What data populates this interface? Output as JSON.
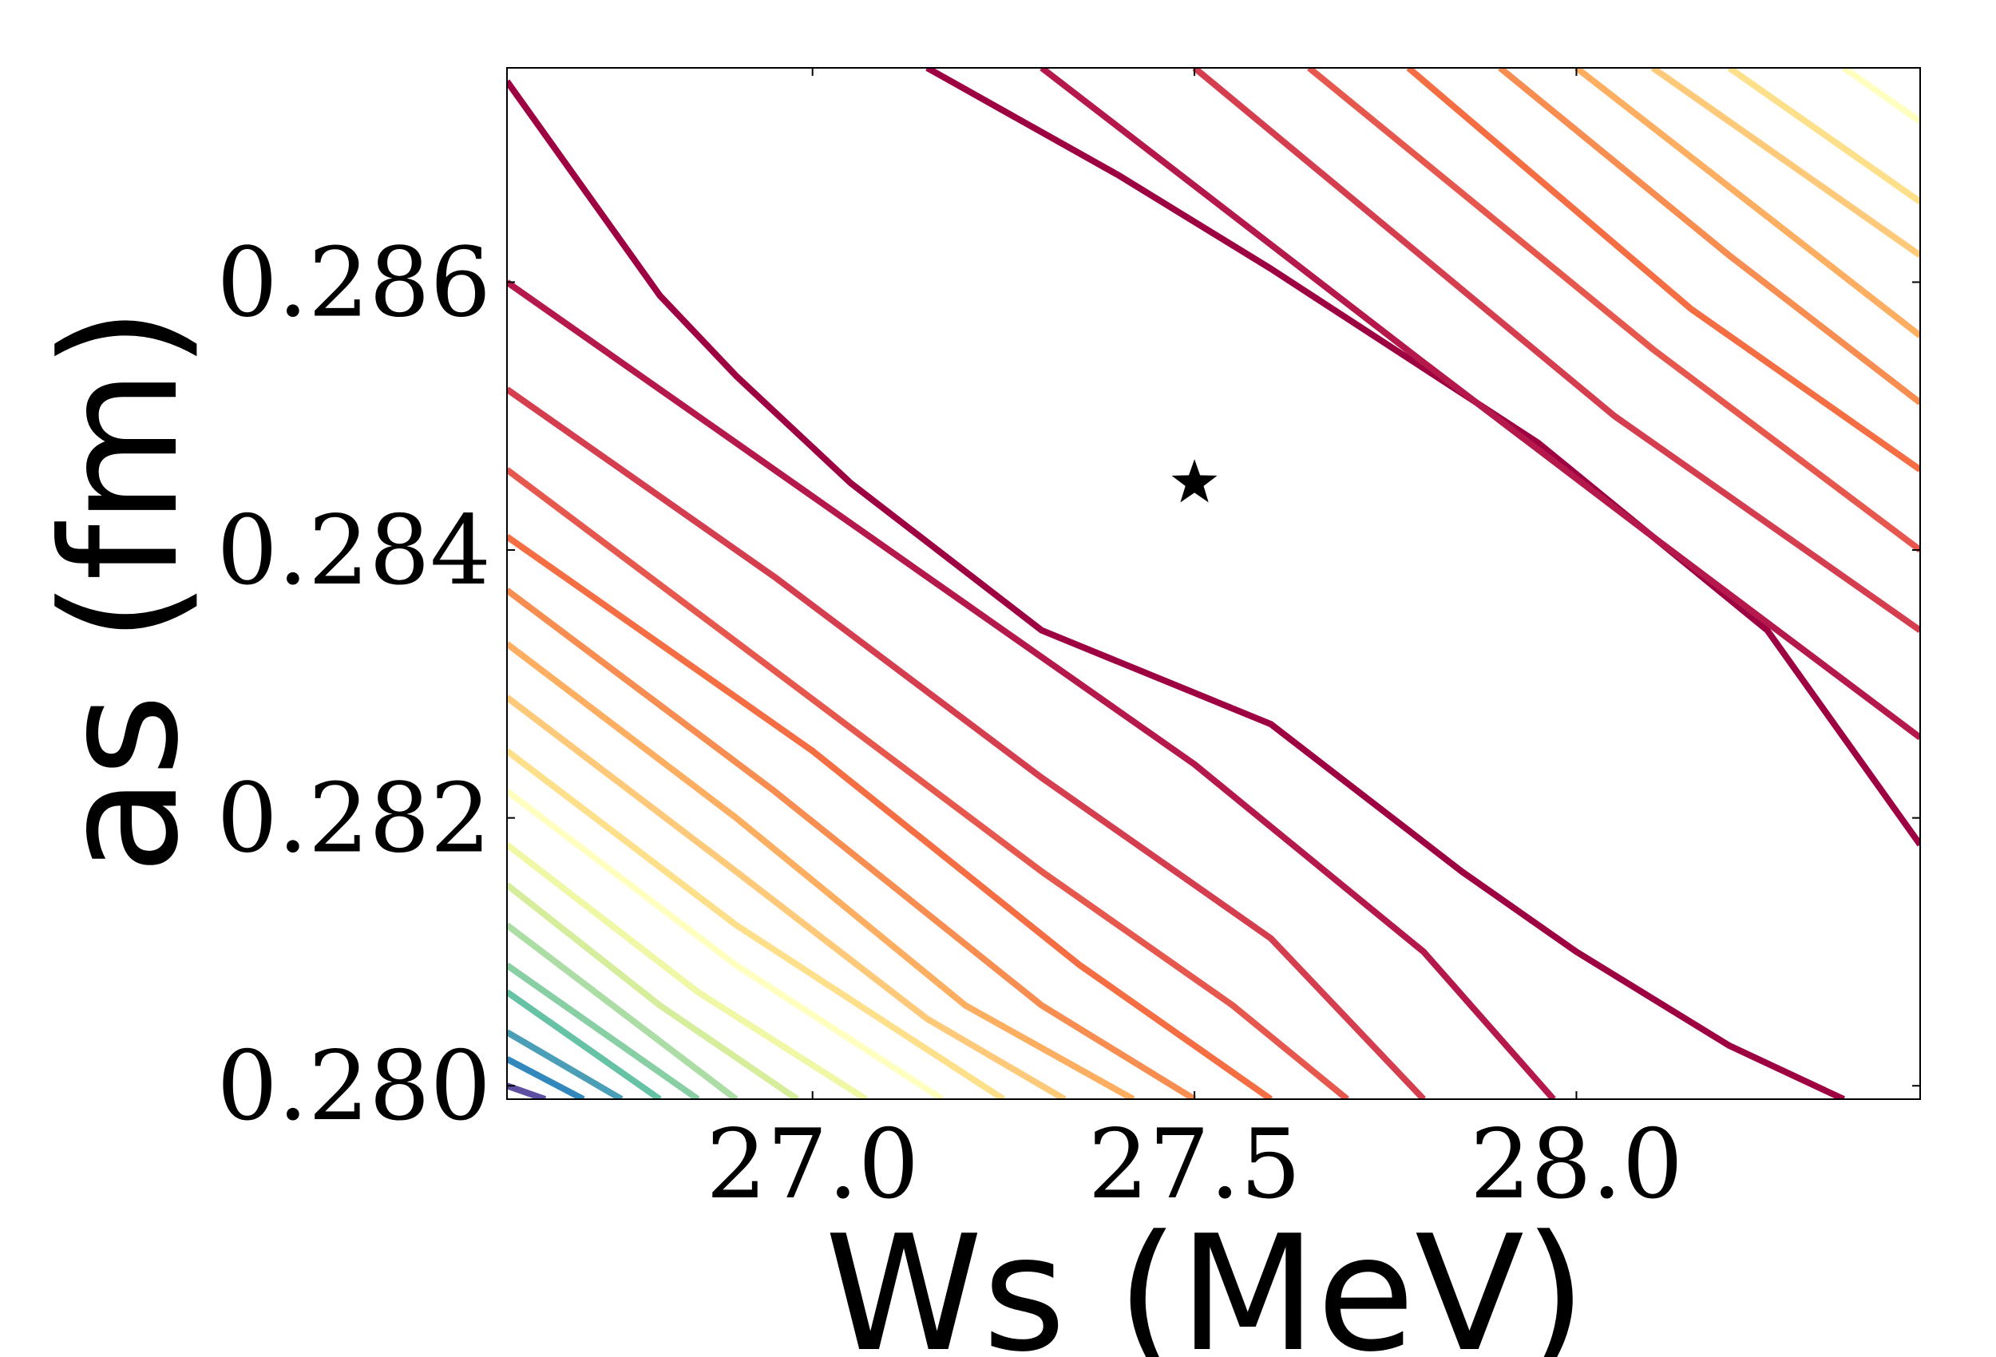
{
  "chart_data": {
    "type": "contour",
    "xlabel": "Ws (MeV)",
    "ylabel": "as (fm)",
    "xlim": [
      26.6,
      28.45
    ],
    "ylim": [
      0.2799,
      0.2876
    ],
    "xticks": [
      "27.0",
      "27.5",
      "28.0"
    ],
    "xtick_values": [
      27.0,
      27.5,
      28.0
    ],
    "yticks": [
      "0.280",
      "0.282",
      "0.284",
      "0.286"
    ],
    "ytick_values": [
      0.28,
      0.282,
      0.284,
      0.286
    ],
    "colormap": "Spectral",
    "grid": false,
    "legend": "none",
    "minimum_marker": {
      "symbol": "star",
      "x": 27.5,
      "y": 0.2845
    },
    "contours": [
      {
        "level": 1,
        "color": "#9e0142",
        "points": [
          [
            26.6,
            0.2875
          ],
          [
            26.8,
            0.2859
          ],
          [
            26.9,
            0.2853
          ],
          [
            27.05,
            0.2845
          ],
          [
            27.3,
            0.2834
          ],
          [
            27.6,
            0.2827
          ],
          [
            27.85,
            0.2816
          ],
          [
            28.0,
            0.281
          ],
          [
            28.2,
            0.2803
          ],
          [
            28.35,
            0.2799
          ]
        ]
      },
      {
        "level": 1,
        "color": "#9e0142",
        "points": [
          [
            27.15,
            0.2876
          ],
          [
            27.4,
            0.2868
          ],
          [
            27.6,
            0.2861
          ],
          [
            27.95,
            0.2848
          ],
          [
            28.25,
            0.2834
          ],
          [
            28.4,
            0.2822
          ],
          [
            28.45,
            0.2818
          ]
        ]
      },
      {
        "level": 2,
        "color": "#b5184a",
        "points": [
          [
            26.6,
            0.286
          ],
          [
            26.9,
            0.2848
          ],
          [
            27.2,
            0.2836
          ],
          [
            27.5,
            0.2824
          ],
          [
            27.8,
            0.281
          ],
          [
            27.97,
            0.2799
          ]
        ]
      },
      {
        "level": 2,
        "color": "#b5184a",
        "points": [
          [
            27.3,
            0.2876
          ],
          [
            27.8,
            0.2854
          ],
          [
            28.1,
            0.2841
          ],
          [
            28.45,
            0.2826
          ]
        ]
      },
      {
        "level": 3,
        "color": "#d53e4f",
        "points": [
          [
            26.6,
            0.2852
          ],
          [
            26.95,
            0.2838
          ],
          [
            27.3,
            0.2823
          ],
          [
            27.6,
            0.2811
          ],
          [
            27.8,
            0.2799
          ]
        ]
      },
      {
        "level": 3,
        "color": "#d53e4f",
        "points": [
          [
            27.5,
            0.2876
          ],
          [
            28.05,
            0.285
          ],
          [
            28.45,
            0.2834
          ]
        ]
      },
      {
        "level": 4,
        "color": "#e6584d",
        "points": [
          [
            26.6,
            0.2846
          ],
          [
            26.95,
            0.2831
          ],
          [
            27.3,
            0.2816
          ],
          [
            27.55,
            0.2806
          ],
          [
            27.7,
            0.2799
          ]
        ]
      },
      {
        "level": 4,
        "color": "#e6584d",
        "points": [
          [
            27.65,
            0.2876
          ],
          [
            28.1,
            0.2855
          ],
          [
            28.45,
            0.284
          ]
        ]
      },
      {
        "level": 5,
        "color": "#f46d43",
        "points": [
          [
            26.6,
            0.2841
          ],
          [
            27.0,
            0.2825
          ],
          [
            27.35,
            0.2809
          ],
          [
            27.6,
            0.2799
          ]
        ]
      },
      {
        "level": 5,
        "color": "#f46d43",
        "points": [
          [
            27.78,
            0.2876
          ],
          [
            28.15,
            0.2858
          ],
          [
            28.45,
            0.2846
          ]
        ]
      },
      {
        "level": 6,
        "color": "#f88d52",
        "points": [
          [
            26.6,
            0.2837
          ],
          [
            26.95,
            0.2822
          ],
          [
            27.3,
            0.2806
          ],
          [
            27.5,
            0.2799
          ]
        ]
      },
      {
        "level": 6,
        "color": "#f88d52",
        "points": [
          [
            27.9,
            0.2876
          ],
          [
            28.2,
            0.2862
          ],
          [
            28.45,
            0.2851
          ]
        ]
      },
      {
        "level": 7,
        "color": "#fdae61",
        "points": [
          [
            26.6,
            0.2833
          ],
          [
            26.9,
            0.282
          ],
          [
            27.2,
            0.2806
          ],
          [
            27.42,
            0.2799
          ]
        ]
      },
      {
        "level": 7,
        "color": "#fdae61",
        "points": [
          [
            28.0,
            0.2876
          ],
          [
            28.45,
            0.2856
          ]
        ]
      },
      {
        "level": 8,
        "color": "#fec979",
        "points": [
          [
            26.6,
            0.2829
          ],
          [
            26.9,
            0.2816
          ],
          [
            27.15,
            0.2805
          ],
          [
            27.33,
            0.2799
          ]
        ]
      },
      {
        "level": 8,
        "color": "#fec979",
        "points": [
          [
            28.1,
            0.2876
          ],
          [
            28.45,
            0.2862
          ]
        ]
      },
      {
        "level": 9,
        "color": "#fee08b",
        "points": [
          [
            26.6,
            0.2825
          ],
          [
            26.9,
            0.2812
          ],
          [
            27.25,
            0.2799
          ]
        ]
      },
      {
        "level": 9,
        "color": "#fee08b",
        "points": [
          [
            28.2,
            0.2876
          ],
          [
            28.45,
            0.2866
          ]
        ]
      },
      {
        "level": 10,
        "color": "#ffffbf",
        "points": [
          [
            26.6,
            0.2822
          ],
          [
            26.9,
            0.2809
          ],
          [
            27.17,
            0.2799
          ]
        ]
      },
      {
        "level": 10,
        "color": "#ffffbf",
        "points": [
          [
            28.35,
            0.2876
          ],
          [
            28.45,
            0.2872
          ]
        ]
      },
      {
        "level": 11,
        "color": "#f0f7a5",
        "points": [
          [
            26.6,
            0.2818
          ],
          [
            26.85,
            0.2807
          ],
          [
            27.07,
            0.2799
          ]
        ]
      },
      {
        "level": 12,
        "color": "#d6ee9b",
        "points": [
          [
            26.6,
            0.2815
          ],
          [
            26.8,
            0.2806
          ],
          [
            26.98,
            0.2799
          ]
        ]
      },
      {
        "level": 13,
        "color": "#abdda4",
        "points": [
          [
            26.6,
            0.2812
          ],
          [
            26.9,
            0.2799
          ]
        ]
      },
      {
        "level": 14,
        "color": "#88cfa4",
        "points": [
          [
            26.6,
            0.2809
          ],
          [
            26.85,
            0.2799
          ]
        ]
      },
      {
        "level": 15,
        "color": "#66c2a5",
        "points": [
          [
            26.6,
            0.2807
          ],
          [
            26.8,
            0.2799
          ]
        ]
      },
      {
        "level": 16,
        "color": "#4a9fb6",
        "points": [
          [
            26.6,
            0.2804
          ],
          [
            26.75,
            0.2799
          ]
        ]
      },
      {
        "level": 17,
        "color": "#3288bd",
        "points": [
          [
            26.6,
            0.2802
          ],
          [
            26.7,
            0.2799
          ]
        ]
      },
      {
        "level": 18,
        "color": "#5e4fa2",
        "points": [
          [
            26.6,
            0.28
          ],
          [
            26.65,
            0.2799
          ]
        ]
      }
    ]
  }
}
